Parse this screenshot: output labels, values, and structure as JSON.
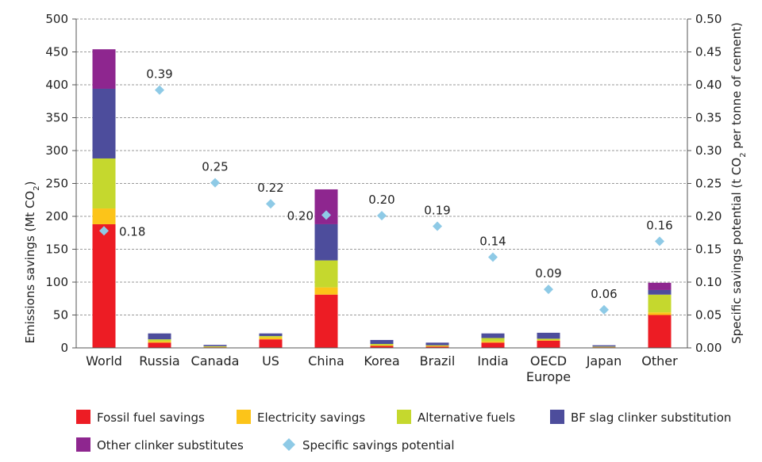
{
  "chart_data": {
    "type": "bar",
    "stacked": true,
    "categories": [
      [
        "World"
      ],
      [
        "Russia"
      ],
      [
        "Canada"
      ],
      [
        "US"
      ],
      [
        "China"
      ],
      [
        "Korea"
      ],
      [
        "Brazil"
      ],
      [
        "India"
      ],
      [
        "OECD",
        "Europe"
      ],
      [
        "Japan"
      ],
      [
        "Other"
      ]
    ],
    "series": [
      {
        "name": "Fossil fuel savings",
        "color": "#ed1c24",
        "values": [
          188,
          8,
          1,
          13,
          81,
          3,
          2,
          8,
          11,
          1,
          50
        ]
      },
      {
        "name": "Electricity savings",
        "color": "#fcc419",
        "values": [
          24,
          2,
          0.5,
          3,
          11,
          1,
          1,
          2,
          1,
          0.5,
          4
        ]
      },
      {
        "name": "Alternative fuels",
        "color": "#c5d82e",
        "values": [
          76,
          3,
          1,
          2,
          41,
          2,
          1,
          5,
          2,
          0.5,
          27
        ]
      },
      {
        "name": "BF slag clinker substitution",
        "color": "#4d4d9c",
        "values": [
          106,
          9,
          2,
          4,
          55,
          6,
          4,
          7,
          9,
          2,
          7
        ]
      },
      {
        "name": "Other clinker substitutes",
        "color": "#8e268f",
        "values": [
          60,
          0,
          0,
          0,
          53,
          0,
          0,
          0,
          0,
          0,
          11
        ]
      }
    ],
    "secondary_series": {
      "name": "Specific savings potential",
      "type": "scatter",
      "marker": "diamond",
      "color": "#8ecae6",
      "values": [
        0.178,
        0.392,
        0.251,
        0.219,
        0.202,
        0.201,
        0.185,
        0.138,
        0.089,
        0.058,
        0.162
      ],
      "labels": [
        "0.18",
        "0.39",
        "0.25",
        "0.22",
        "0.20",
        "0.20",
        "0.19",
        "0.14",
        "0.09",
        "0.06",
        "0.16"
      ]
    },
    "ylabel": "Emissions savings (Mt CO",
    "ylabel_sub": "2",
    "ylabel_end": ")",
    "y2label": "Specific savings potential (t CO",
    "y2label_sub": "2",
    "y2label_end": " per tonne of cement)",
    "ylim": [
      0,
      500
    ],
    "y2lim": [
      0,
      0.5
    ],
    "yticks": [
      "0",
      "50",
      "100",
      "150",
      "200",
      "250",
      "300",
      "350",
      "400",
      "450",
      "500"
    ],
    "y2ticks": [
      "0.00",
      "0.05",
      "0.10",
      "0.15",
      "0.20",
      "0.25",
      "0.30",
      "0.35",
      "0.40",
      "0.45",
      "0.50"
    ],
    "grid": true,
    "legend_position": "bottom"
  }
}
